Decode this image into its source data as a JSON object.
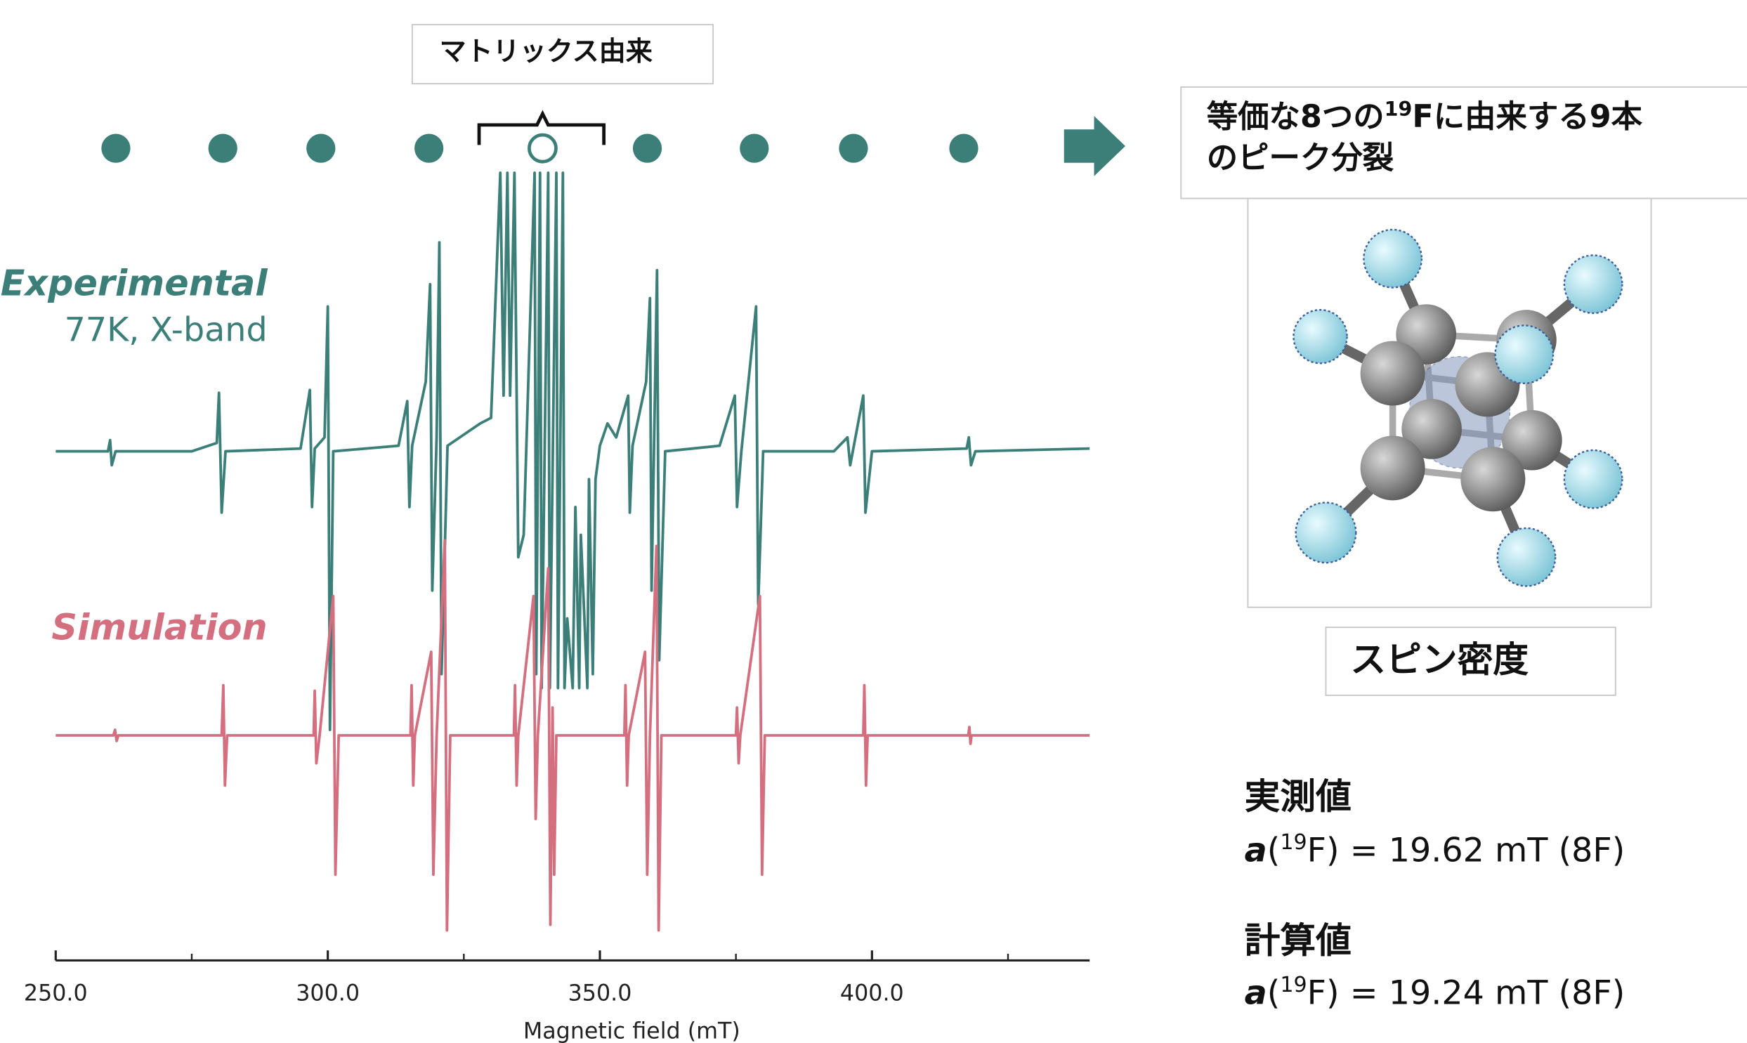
{
  "chart_data": {
    "type": "line",
    "x_label": "Magnetic field (mT)",
    "xlim": [
      250,
      440
    ],
    "xticks": [
      {
        "value": 250,
        "label": "250.0"
      },
      {
        "value": 300,
        "label": "300.0"
      },
      {
        "value": 350,
        "label": "350.0"
      },
      {
        "value": 400,
        "label": "400.0"
      }
    ],
    "xminorticks": [
      275,
      325,
      375,
      425
    ],
    "ylim": [
      -1,
      1
    ],
    "series": [
      {
        "name": "Experimental",
        "conditions": "77K, X-band",
        "color": "#3b7f78",
        "x": [
          250,
          259.6,
          260,
          260.3,
          261,
          275,
          279.6,
          280,
          280.5,
          281.2,
          295,
          296.7,
          297.1,
          297.6,
          299.4,
          300,
          300.4,
          301,
          313,
          314.6,
          315,
          315.5,
          318,
          318.8,
          319.2,
          320,
          320.5,
          320.9,
          322,
          328,
          330,
          331.7,
          332.3,
          333,
          333.5,
          334.3,
          335,
          336,
          338,
          338.3,
          339,
          339.3,
          340.5,
          340.8,
          342,
          342.3,
          343.2,
          343.5,
          344,
          345,
          345.5,
          346.2,
          346.5,
          347.7,
          348,
          348.7,
          349.2,
          350,
          351.4,
          353,
          355.2,
          355.5,
          356,
          358.5,
          359.2,
          359.5,
          360.5,
          360.9,
          362,
          372,
          374.8,
          375.2,
          376,
          378.7,
          379.1,
          380,
          393,
          395.5,
          396,
          398.4,
          398.8,
          400,
          417.4,
          417.8,
          418.2,
          419,
          440
        ],
        "values": [
          0,
          0,
          0.04,
          -0.05,
          0,
          0,
          0.03,
          0.21,
          -0.22,
          0,
          0.01,
          0.22,
          -0.2,
          0.01,
          0.05,
          0.52,
          -1,
          0,
          0.02,
          0.18,
          -0.2,
          0.02,
          0.25,
          0.6,
          -0.5,
          0.05,
          0.75,
          -0.8,
          0.02,
          0.1,
          0.12,
          1,
          0.2,
          1,
          0.2,
          1,
          -0.38,
          -0.3,
          1,
          -0.8,
          1,
          -0.85,
          1,
          -0.85,
          1,
          -0.85,
          1,
          -0.85,
          -0.6,
          -0.85,
          -0.2,
          -0.85,
          -0.3,
          -0.85,
          -0.1,
          -0.8,
          -0.1,
          0.02,
          0.1,
          0.05,
          0.2,
          -0.22,
          0.02,
          0.25,
          0.55,
          -0.5,
          0.65,
          -0.75,
          0,
          0.02,
          0.2,
          -0.2,
          0,
          0.52,
          -0.55,
          0,
          0,
          0.05,
          -0.05,
          0.2,
          -0.22,
          0,
          0.01,
          0.05,
          -0.05,
          0,
          0.01
        ]
      },
      {
        "name": "Simulation",
        "color": "#d46f80",
        "x": [
          250,
          260.6,
          260.9,
          261.2,
          261.5,
          280.5,
          280.8,
          281.1,
          281.5,
          297.4,
          297.6,
          297.9,
          298.5,
          301,
          301.4,
          302,
          315.2,
          315.4,
          315.7,
          316,
          319,
          319.4,
          320,
          321.5,
          321.9,
          322.5,
          334.2,
          334.4,
          334.7,
          335,
          337.8,
          338.2,
          338.6,
          340.5,
          340.9,
          341.3,
          341.6,
          342,
          354.5,
          354.7,
          355,
          355.3,
          358.3,
          358.7,
          359.2,
          360.4,
          360.8,
          361.3,
          375,
          375.2,
          375.5,
          375.8,
          379.4,
          379.8,
          380.3,
          398.4,
          398.6,
          398.9,
          399.2,
          417.7,
          417.9,
          418.1,
          418.3,
          440
        ],
        "values": [
          0,
          0,
          0.02,
          -0.02,
          0,
          0,
          0.18,
          -0.18,
          0,
          0,
          0.16,
          -0.1,
          0,
          0.5,
          -0.5,
          0,
          0,
          0.18,
          -0.18,
          0,
          0.3,
          -0.5,
          0,
          0.7,
          -0.7,
          0,
          0,
          0.18,
          -0.18,
          0,
          0.5,
          -0.3,
          0,
          0.6,
          -0.68,
          0.1,
          -0.5,
          0,
          0,
          0.18,
          -0.18,
          0,
          0.3,
          -0.5,
          0,
          0.68,
          -0.7,
          0,
          0,
          0.1,
          -0.1,
          0,
          0.5,
          -0.5,
          0,
          0,
          0.18,
          -0.18,
          0,
          0,
          0.03,
          -0.03,
          0,
          0
        ]
      }
    ],
    "annotations": {
      "matrix": "マトリックス由来",
      "splitting": {
        "line1": [
          "等価な8つの",
          "19",
          "Fに由来する9本"
        ],
        "line2": "のピーク分裂"
      },
      "spin_density": "スピン密度",
      "measured": {
        "label": "実測値",
        "symbol": "a",
        "open": "(",
        "isotope": "19",
        "rest": "F) = 19.62 mT (8F)"
      },
      "calculated": {
        "label": "計算値",
        "symbol": "a",
        "open": "(",
        "isotope": "19",
        "rest": "F) = 19.24 mT (8F)"
      }
    }
  }
}
